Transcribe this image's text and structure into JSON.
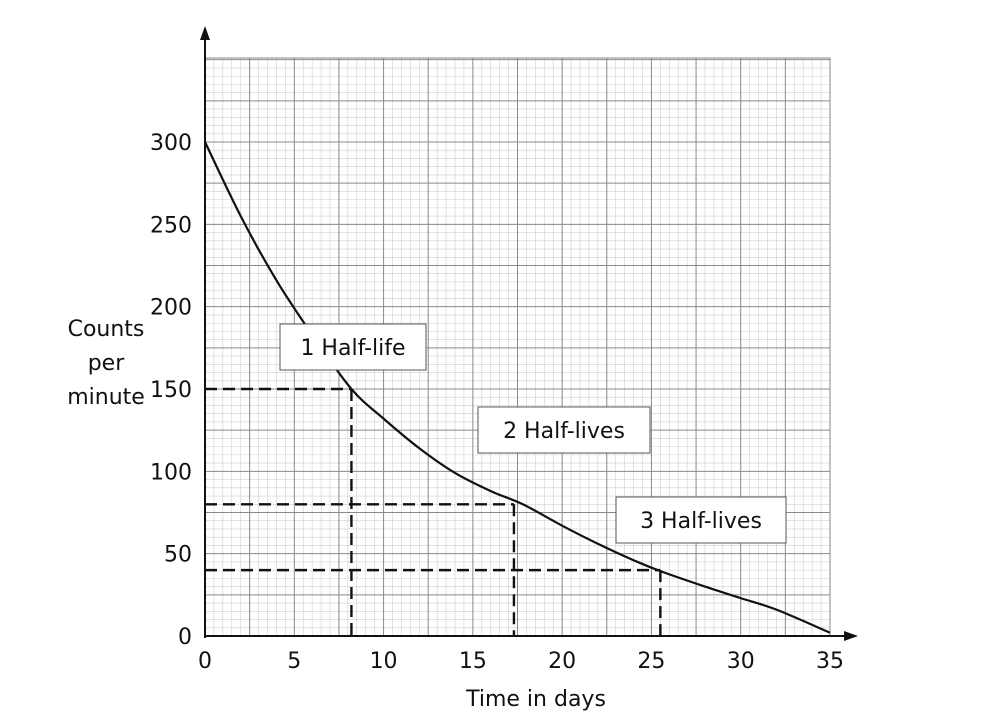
{
  "chart_data": {
    "type": "line",
    "title": "",
    "xlabel": "Time in days",
    "ylabel_lines": [
      "Counts",
      "per",
      "minute"
    ],
    "xlim": [
      0,
      35
    ],
    "ylim": [
      0,
      300
    ],
    "x_ticks": [
      "0",
      "5",
      "10",
      "15",
      "20",
      "25",
      "30",
      "35"
    ],
    "y_ticks": [
      "0",
      "50",
      "100",
      "150",
      "200",
      "250",
      "300"
    ],
    "grid": true,
    "series": [
      {
        "x": [
          0,
          2,
          4,
          6,
          8.2,
          10,
          12,
          14,
          16,
          17.8,
          20,
          22,
          24,
          25.6,
          28,
          30,
          32,
          35
        ],
        "y": [
          300,
          255,
          216,
          183,
          150,
          132,
          114,
          99,
          88,
          80,
          67,
          56,
          46,
          39,
          30,
          23,
          16,
          2
        ]
      }
    ],
    "half_life_guides": [
      {
        "x": 8.2,
        "y": 150
      },
      {
        "x": 17.3,
        "y": 80
      },
      {
        "x": 25.5,
        "y": 40
      }
    ],
    "annotations": [
      {
        "text": "1 Half-life"
      },
      {
        "text": "2 Half-lives"
      },
      {
        "text": "3 Half-lives"
      }
    ]
  }
}
